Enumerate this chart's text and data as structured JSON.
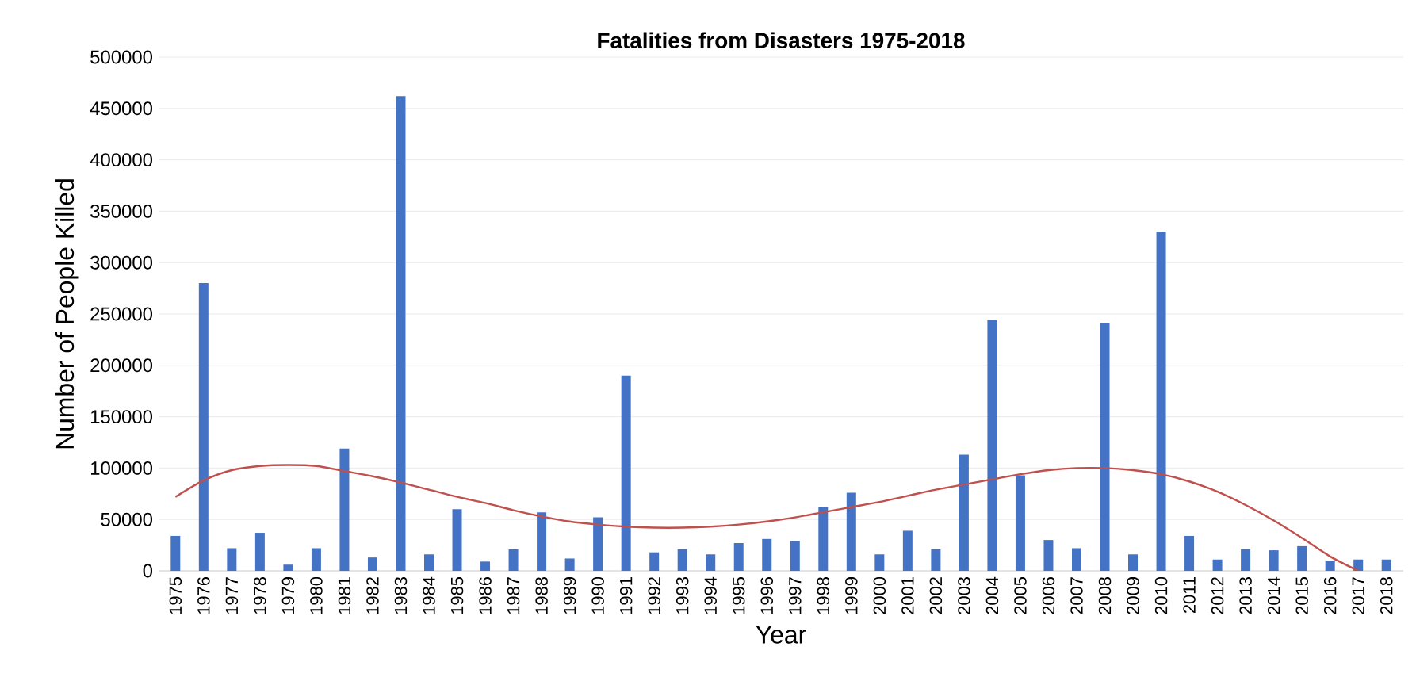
{
  "chart_data": {
    "type": "bar",
    "title": "Fatalities from Disasters 1975-2018",
    "xlabel": "Year",
    "ylabel": "Number of People Killed",
    "categories": [
      "1975",
      "1976",
      "1977",
      "1978",
      "1979",
      "1980",
      "1981",
      "1982",
      "1983",
      "1984",
      "1985",
      "1986",
      "1987",
      "1988",
      "1989",
      "1990",
      "1991",
      "1992",
      "1993",
      "1994",
      "1995",
      "1996",
      "1997",
      "1998",
      "1999",
      "2000",
      "2001",
      "2002",
      "2003",
      "2004",
      "2005",
      "2006",
      "2007",
      "2008",
      "2009",
      "2010",
      "2011",
      "2012",
      "2013",
      "2014",
      "2015",
      "2016",
      "2017",
      "2018"
    ],
    "series": [
      {
        "color": "#4472c4",
        "values": [
          34000,
          280000,
          22000,
          37000,
          6000,
          22000,
          119000,
          13000,
          462000,
          16000,
          60000,
          9000,
          21000,
          57000,
          12000,
          52000,
          190000,
          18000,
          21000,
          16000,
          27000,
          31000,
          29000,
          62000,
          76000,
          16000,
          39000,
          21000,
          113000,
          244000,
          93000,
          30000,
          22000,
          241000,
          16000,
          330000,
          34000,
          11000,
          21000,
          20000,
          24000,
          10000,
          11000,
          11000
        ]
      },
      {
        "type": "line",
        "color": "#c0504d",
        "values": [
          72000,
          88000,
          98000,
          102000,
          103000,
          102000,
          97000,
          92000,
          86000,
          79000,
          72000,
          66000,
          59000,
          53000,
          48000,
          45000,
          43000,
          42000,
          42000,
          43000,
          45000,
          48000,
          52000,
          57000,
          62000,
          67000,
          73000,
          79000,
          84000,
          89000,
          94000,
          98000,
          100000,
          100000,
          98000,
          94000,
          87000,
          77000,
          64000,
          49000,
          32000,
          14000,
          0,
          null
        ]
      }
    ],
    "ylim": [
      0,
      500000
    ],
    "yticks": [
      0,
      50000,
      100000,
      150000,
      200000,
      250000,
      300000,
      350000,
      400000,
      450000,
      500000
    ],
    "grid": "y",
    "marker": "none",
    "line_style": "solid"
  }
}
